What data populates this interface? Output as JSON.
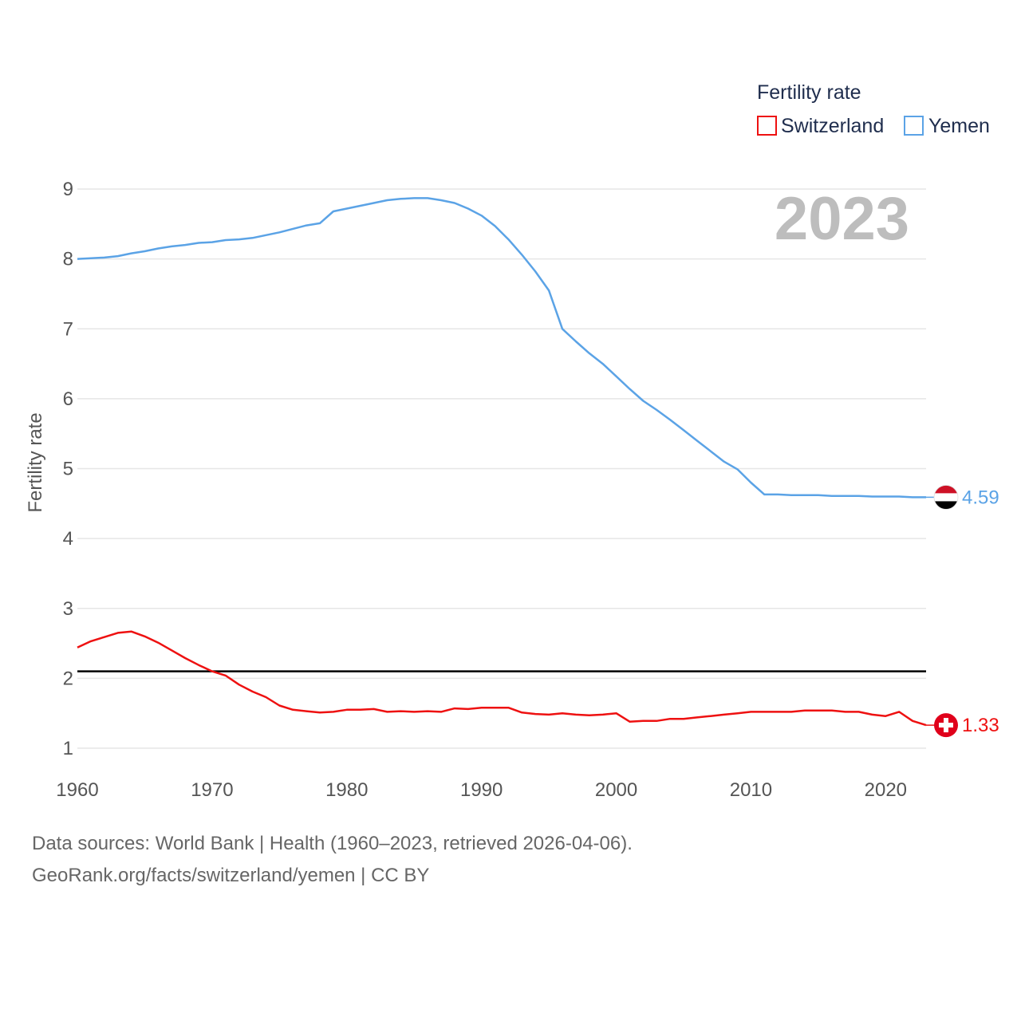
{
  "chart_data": {
    "type": "line",
    "title": "",
    "year_label": "2023",
    "xlabel": "",
    "ylabel": "Fertility rate",
    "xlim": [
      1960,
      2023
    ],
    "ylim": [
      1,
      9
    ],
    "x_ticks": [
      1960,
      1970,
      1980,
      1990,
      2000,
      2010,
      2020
    ],
    "y_ticks": [
      1,
      2,
      3,
      4,
      5,
      6,
      7,
      8,
      9
    ],
    "legend": {
      "title": "Fertility rate",
      "position": "top-right",
      "entries": [
        "Switzerland",
        "Yemen"
      ]
    },
    "reference_line": {
      "y": 2.1,
      "color": "#000000"
    },
    "x": [
      1960,
      1961,
      1962,
      1963,
      1964,
      1965,
      1966,
      1967,
      1968,
      1969,
      1970,
      1971,
      1972,
      1973,
      1974,
      1975,
      1976,
      1977,
      1978,
      1979,
      1980,
      1981,
      1982,
      1983,
      1984,
      1985,
      1986,
      1987,
      1988,
      1989,
      1990,
      1991,
      1992,
      1993,
      1994,
      1995,
      1996,
      1997,
      1998,
      1999,
      2000,
      2001,
      2002,
      2003,
      2004,
      2005,
      2006,
      2007,
      2008,
      2009,
      2010,
      2011,
      2012,
      2013,
      2014,
      2015,
      2016,
      2017,
      2018,
      2019,
      2020,
      2021,
      2022,
      2023
    ],
    "series": [
      {
        "name": "Switzerland",
        "color": "#ee1111",
        "end_label": "1.33",
        "values": [
          2.44,
          2.53,
          2.59,
          2.65,
          2.67,
          2.6,
          2.51,
          2.4,
          2.29,
          2.19,
          2.1,
          2.04,
          1.91,
          1.81,
          1.73,
          1.61,
          1.55,
          1.53,
          1.51,
          1.52,
          1.55,
          1.55,
          1.56,
          1.52,
          1.53,
          1.52,
          1.53,
          1.52,
          1.57,
          1.56,
          1.58,
          1.58,
          1.58,
          1.51,
          1.49,
          1.48,
          1.5,
          1.48,
          1.47,
          1.48,
          1.5,
          1.38,
          1.39,
          1.39,
          1.42,
          1.42,
          1.44,
          1.46,
          1.48,
          1.5,
          1.52,
          1.52,
          1.52,
          1.52,
          1.54,
          1.54,
          1.54,
          1.52,
          1.52,
          1.48,
          1.46,
          1.52,
          1.39,
          1.33
        ]
      },
      {
        "name": "Yemen",
        "color": "#5ba3e6",
        "end_label": "4.59",
        "values": [
          8.0,
          8.01,
          8.02,
          8.04,
          8.08,
          8.11,
          8.15,
          8.18,
          8.2,
          8.23,
          8.24,
          8.27,
          8.28,
          8.3,
          8.34,
          8.38,
          8.43,
          8.48,
          8.51,
          8.68,
          8.72,
          8.76,
          8.8,
          8.84,
          8.86,
          8.87,
          8.87,
          8.84,
          8.8,
          8.72,
          8.62,
          8.47,
          8.28,
          8.06,
          7.82,
          7.55,
          7.0,
          6.82,
          6.65,
          6.5,
          6.32,
          6.14,
          5.97,
          5.84,
          5.7,
          5.55,
          5.4,
          5.25,
          5.1,
          4.99,
          4.8,
          4.63,
          4.63,
          4.62,
          4.62,
          4.62,
          4.61,
          4.61,
          4.61,
          4.6,
          4.6,
          4.6,
          4.59,
          4.59
        ]
      }
    ]
  },
  "footer": {
    "line1": "Data sources: World Bank | Health (1960–2023, retrieved 2026-04-06).",
    "line2": "GeoRank.org/facts/switzerland/yemen | CC BY"
  }
}
